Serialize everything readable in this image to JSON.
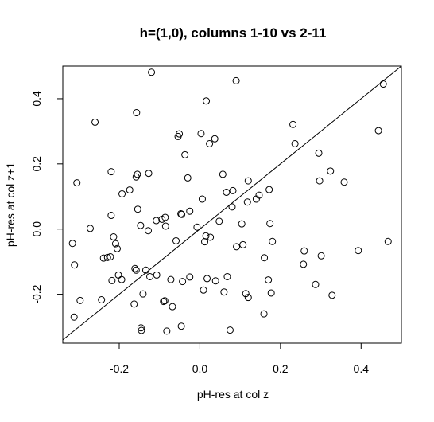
{
  "chart_data": {
    "type": "scatter",
    "title": "h=(1,0), columns 1-10 vs 2-11",
    "xlabel": "pH-res at col z",
    "ylabel": "pH-res at col z+1",
    "xlim": [
      -0.34,
      0.5
    ],
    "ylim": [
      -0.35,
      0.5
    ],
    "xticks": [
      -0.2,
      0.0,
      0.2,
      0.4
    ],
    "xtick_labels": [
      "-0.2",
      "0.0",
      "0.2",
      "0.4"
    ],
    "yticks": [
      -0.2,
      0.0,
      0.2,
      0.4
    ],
    "ytick_labels": [
      "-0.2",
      "0.0",
      "0.2",
      "0.4"
    ],
    "reference_line": {
      "slope": 1,
      "intercept": 0
    },
    "grid": false,
    "marker": "open-circle",
    "points": [
      {
        "x": -0.12,
        "y": 0.481
      },
      {
        "x": 0.09,
        "y": 0.455
      },
      {
        "x": 0.455,
        "y": 0.445
      },
      {
        "x": 0.016,
        "y": 0.393
      },
      {
        "x": -0.157,
        "y": 0.357
      },
      {
        "x": -0.26,
        "y": 0.328
      },
      {
        "x": 0.231,
        "y": 0.321
      },
      {
        "x": 0.443,
        "y": 0.302
      },
      {
        "x": 0.003,
        "y": 0.293
      },
      {
        "x": -0.051,
        "y": 0.292
      },
      {
        "x": -0.054,
        "y": 0.284
      },
      {
        "x": 0.037,
        "y": 0.277
      },
      {
        "x": 0.024,
        "y": 0.262
      },
      {
        "x": 0.236,
        "y": 0.262
      },
      {
        "x": -0.037,
        "y": 0.228
      },
      {
        "x": 0.295,
        "y": 0.233
      },
      {
        "x": -0.22,
        "y": 0.176
      },
      {
        "x": -0.127,
        "y": 0.171
      },
      {
        "x": -0.155,
        "y": 0.168
      },
      {
        "x": -0.158,
        "y": 0.16
      },
      {
        "x": 0.057,
        "y": 0.168
      },
      {
        "x": 0.324,
        "y": 0.178
      },
      {
        "x": -0.03,
        "y": 0.157
      },
      {
        "x": 0.12,
        "y": 0.148
      },
      {
        "x": 0.297,
        "y": 0.148
      },
      {
        "x": 0.358,
        "y": 0.144
      },
      {
        "x": -0.305,
        "y": 0.142
      },
      {
        "x": -0.174,
        "y": 0.12
      },
      {
        "x": 0.082,
        "y": 0.118
      },
      {
        "x": 0.172,
        "y": 0.121
      },
      {
        "x": 0.066,
        "y": 0.113
      },
      {
        "x": -0.193,
        "y": 0.108
      },
      {
        "x": 0.147,
        "y": 0.104
      },
      {
        "x": 0.006,
        "y": 0.092
      },
      {
        "x": 0.14,
        "y": 0.092
      },
      {
        "x": 0.118,
        "y": 0.083
      },
      {
        "x": -0.154,
        "y": 0.061
      },
      {
        "x": 0.08,
        "y": 0.068
      },
      {
        "x": -0.025,
        "y": 0.055
      },
      {
        "x": -0.047,
        "y": 0.047
      },
      {
        "x": -0.045,
        "y": 0.045
      },
      {
        "x": -0.22,
        "y": 0.042
      },
      {
        "x": -0.086,
        "y": 0.036
      },
      {
        "x": -0.094,
        "y": 0.03
      },
      {
        "x": -0.108,
        "y": 0.026
      },
      {
        "x": 0.048,
        "y": 0.024
      },
      {
        "x": 0.104,
        "y": 0.016
      },
      {
        "x": 0.174,
        "y": 0.017
      },
      {
        "x": -0.147,
        "y": 0.011
      },
      {
        "x": -0.085,
        "y": 0.009
      },
      {
        "x": -0.007,
        "y": 0.006
      },
      {
        "x": -0.272,
        "y": 0.002
      },
      {
        "x": -0.128,
        "y": -0.005
      },
      {
        "x": -0.214,
        "y": -0.024
      },
      {
        "x": 0.015,
        "y": -0.021
      },
      {
        "x": 0.026,
        "y": -0.025
      },
      {
        "x": 0.18,
        "y": -0.038
      },
      {
        "x": 0.012,
        "y": -0.039
      },
      {
        "x": 0.467,
        "y": -0.038
      },
      {
        "x": -0.316,
        "y": -0.044
      },
      {
        "x": -0.209,
        "y": -0.045
      },
      {
        "x": 0.107,
        "y": -0.048
      },
      {
        "x": -0.059,
        "y": -0.036
      },
      {
        "x": -0.205,
        "y": -0.06
      },
      {
        "x": 0.091,
        "y": -0.054
      },
      {
        "x": 0.259,
        "y": -0.067
      },
      {
        "x": 0.393,
        "y": -0.066
      },
      {
        "x": 0.301,
        "y": -0.082
      },
      {
        "x": 0.16,
        "y": -0.088
      },
      {
        "x": -0.229,
        "y": -0.087
      },
      {
        "x": -0.239,
        "y": -0.089
      },
      {
        "x": -0.222,
        "y": -0.085
      },
      {
        "x": -0.311,
        "y": -0.11
      },
      {
        "x": 0.257,
        "y": -0.108
      },
      {
        "x": -0.161,
        "y": -0.121
      },
      {
        "x": -0.158,
        "y": -0.126
      },
      {
        "x": -0.134,
        "y": -0.126
      },
      {
        "x": -0.202,
        "y": -0.141
      },
      {
        "x": -0.124,
        "y": -0.146
      },
      {
        "x": -0.107,
        "y": -0.141
      },
      {
        "x": 0.068,
        "y": -0.146
      },
      {
        "x": -0.025,
        "y": -0.147
      },
      {
        "x": -0.218,
        "y": -0.158
      },
      {
        "x": -0.194,
        "y": -0.155
      },
      {
        "x": -0.072,
        "y": -0.155
      },
      {
        "x": -0.043,
        "y": -0.161
      },
      {
        "x": 0.018,
        "y": -0.152
      },
      {
        "x": 0.039,
        "y": -0.159
      },
      {
        "x": 0.17,
        "y": -0.156
      },
      {
        "x": 0.287,
        "y": -0.17
      },
      {
        "x": -0.163,
        "y": -0.23
      },
      {
        "x": 0.009,
        "y": -0.187
      },
      {
        "x": 0.06,
        "y": -0.193
      },
      {
        "x": -0.141,
        "y": -0.199
      },
      {
        "x": 0.114,
        "y": -0.198
      },
      {
        "x": 0.177,
        "y": -0.196
      },
      {
        "x": 0.12,
        "y": -0.21
      },
      {
        "x": 0.328,
        "y": -0.203
      },
      {
        "x": -0.297,
        "y": -0.219
      },
      {
        "x": -0.244,
        "y": -0.217
      },
      {
        "x": -0.087,
        "y": -0.22
      },
      {
        "x": -0.09,
        "y": -0.222
      },
      {
        "x": -0.068,
        "y": -0.238
      },
      {
        "x": -0.312,
        "y": -0.27
      },
      {
        "x": 0.159,
        "y": -0.26
      },
      {
        "x": -0.046,
        "y": -0.298
      },
      {
        "x": -0.146,
        "y": -0.303
      },
      {
        "x": -0.145,
        "y": -0.311
      },
      {
        "x": -0.082,
        "y": -0.313
      },
      {
        "x": 0.075,
        "y": -0.31
      }
    ]
  }
}
